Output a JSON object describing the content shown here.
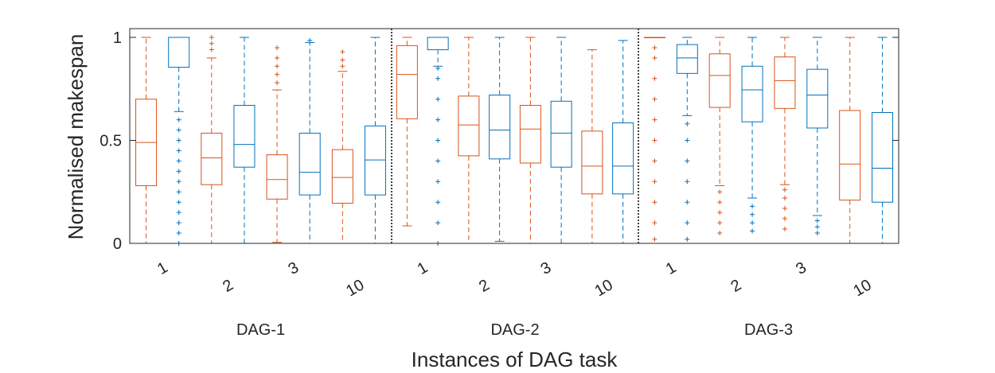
{
  "chart_data": {
    "type": "boxplot",
    "ylabel": "Normalised makespan",
    "xlabel": "Instances of DAG task",
    "ylim": [
      0,
      1
    ],
    "yticks": [
      0,
      0.5,
      1
    ],
    "ytick_labels": [
      "0",
      "0.5",
      "1"
    ],
    "series_colors": [
      "#D95319",
      "#0072BD"
    ],
    "groups": [
      {
        "label": "DAG-1",
        "xtick_labels": [
          "1",
          "2",
          "3",
          "10"
        ],
        "boxes": [
          {
            "series": 0,
            "min": 0.0,
            "q1": 0.28,
            "median": 0.49,
            "q3": 0.7,
            "max": 1.0,
            "outliers": []
          },
          {
            "series": 1,
            "min": 0.64,
            "q1": 0.855,
            "median": 1.0,
            "q3": 1.0,
            "max": 1.0,
            "outliers": [
              0.0,
              0.05,
              0.1,
              0.15,
              0.2,
              0.25,
              0.3,
              0.35,
              0.4,
              0.45,
              0.5,
              0.55,
              0.6
            ]
          },
          {
            "series": 0,
            "min": 0.0,
            "q1": 0.285,
            "median": 0.415,
            "q3": 0.535,
            "max": 0.9,
            "outliers": [
              1.0,
              0.97,
              0.94
            ]
          },
          {
            "series": 1,
            "min": 0.0,
            "q1": 0.37,
            "median": 0.48,
            "q3": 0.67,
            "max": 1.0,
            "outliers": []
          },
          {
            "series": 0,
            "min": 0.005,
            "q1": 0.215,
            "median": 0.31,
            "q3": 0.43,
            "max": 0.745,
            "outliers": [
              0.78,
              0.82,
              0.86,
              0.9,
              0.95
            ]
          },
          {
            "series": 1,
            "min": 0.0,
            "q1": 0.235,
            "median": 0.345,
            "q3": 0.535,
            "max": 0.975,
            "outliers": [
              0.985
            ]
          },
          {
            "series": 0,
            "min": 0.0,
            "q1": 0.195,
            "median": 0.32,
            "q3": 0.455,
            "max": 0.835,
            "outliers": [
              0.86,
              0.89,
              0.93
            ]
          },
          {
            "series": 1,
            "min": 0.0,
            "q1": 0.235,
            "median": 0.405,
            "q3": 0.57,
            "max": 1.0,
            "outliers": []
          }
        ]
      },
      {
        "label": "DAG-2",
        "xtick_labels": [
          "1",
          "2",
          "3",
          "10"
        ],
        "boxes": [
          {
            "series": 0,
            "min": 0.085,
            "q1": 0.605,
            "median": 0.82,
            "q3": 0.96,
            "max": 1.0,
            "outliers": []
          },
          {
            "series": 1,
            "min": 0.86,
            "q1": 0.94,
            "median": 1.0,
            "q3": 1.0,
            "max": 1.0,
            "outliers": [
              0.0,
              0.1,
              0.2,
              0.3,
              0.4,
              0.5,
              0.6,
              0.7,
              0.8,
              0.85
            ]
          },
          {
            "series": 0,
            "min": 0.0,
            "q1": 0.425,
            "median": 0.575,
            "q3": 0.715,
            "max": 1.0,
            "outliers": []
          },
          {
            "series": 1,
            "min": 0.01,
            "q1": 0.41,
            "median": 0.55,
            "q3": 0.72,
            "max": 1.0,
            "outliers": []
          },
          {
            "series": 0,
            "min": 0.0,
            "q1": 0.39,
            "median": 0.555,
            "q3": 0.67,
            "max": 1.0,
            "outliers": []
          },
          {
            "series": 1,
            "min": 0.0,
            "q1": 0.37,
            "median": 0.535,
            "q3": 0.69,
            "max": 1.0,
            "outliers": []
          },
          {
            "series": 0,
            "min": 0.0,
            "q1": 0.24,
            "median": 0.375,
            "q3": 0.545,
            "max": 0.94,
            "outliers": []
          },
          {
            "series": 1,
            "min": 0.0,
            "q1": 0.24,
            "median": 0.375,
            "q3": 0.585,
            "max": 0.985,
            "outliers": []
          }
        ]
      },
      {
        "label": "DAG-3",
        "xtick_labels": [
          "1",
          "2",
          "3",
          "10"
        ],
        "boxes": [
          {
            "series": 0,
            "min": 1.0,
            "q1": 1.0,
            "median": 1.0,
            "q3": 1.0,
            "max": 1.0,
            "outliers": [
              0.02,
              0.1,
              0.2,
              0.3,
              0.4,
              0.5,
              0.6,
              0.7,
              0.8,
              0.9,
              0.95
            ]
          },
          {
            "series": 1,
            "min": 0.62,
            "q1": 0.825,
            "median": 0.9,
            "q3": 0.965,
            "max": 1.0,
            "outliers": [
              0.02,
              0.1,
              0.2,
              0.3,
              0.4,
              0.5,
              0.58
            ]
          },
          {
            "series": 0,
            "min": 0.28,
            "q1": 0.66,
            "median": 0.815,
            "q3": 0.92,
            "max": 1.0,
            "outliers": [
              0.05,
              0.1,
              0.15,
              0.2,
              0.25
            ]
          },
          {
            "series": 1,
            "min": 0.22,
            "q1": 0.59,
            "median": 0.745,
            "q3": 0.86,
            "max": 1.0,
            "outliers": [
              0.06,
              0.1,
              0.14,
              0.18
            ]
          },
          {
            "series": 0,
            "min": 0.285,
            "q1": 0.655,
            "median": 0.79,
            "q3": 0.905,
            "max": 1.0,
            "outliers": [
              0.07,
              0.12,
              0.17,
              0.22,
              0.26
            ]
          },
          {
            "series": 1,
            "min": 0.135,
            "q1": 0.56,
            "median": 0.72,
            "q3": 0.845,
            "max": 1.0,
            "outliers": [
              0.05,
              0.08,
              0.11
            ]
          },
          {
            "series": 0,
            "min": 0.0,
            "q1": 0.21,
            "median": 0.385,
            "q3": 0.645,
            "max": 1.0,
            "outliers": []
          },
          {
            "series": 1,
            "min": 0.0,
            "q1": 0.2,
            "median": 0.365,
            "q3": 0.635,
            "max": 1.0,
            "outliers": []
          }
        ]
      }
    ]
  }
}
